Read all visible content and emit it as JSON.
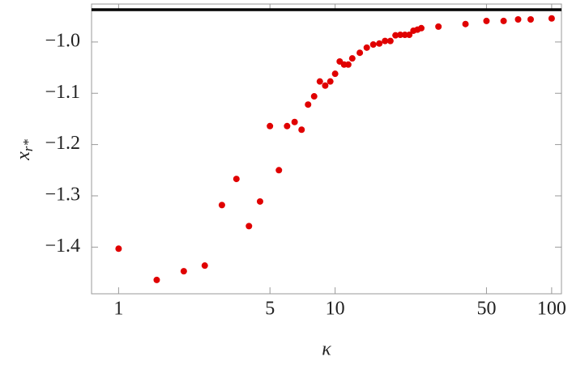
{
  "chart_data": {
    "type": "scatter",
    "x_label": "κ",
    "y_label": {
      "base": "x",
      "sub": "r*"
    },
    "x_scale": "log",
    "xlim": [
      0.75,
      111
    ],
    "ylim": [
      -1.491,
      -0.926
    ],
    "xticks": [
      1,
      5,
      10,
      50,
      100
    ],
    "yticks": [
      {
        "value": -1.4,
        "label": "−1.4"
      },
      {
        "value": -1.3,
        "label": "−1.3"
      },
      {
        "value": -1.2,
        "label": "−1.2"
      },
      {
        "value": -1.1,
        "label": "−1.1"
      },
      {
        "value": -1.0,
        "label": "−1.0"
      }
    ],
    "reference_line": {
      "value": -0.937,
      "color": "#000000"
    },
    "series": [
      {
        "color": "#e00000",
        "x": [
          1,
          1.5,
          2,
          2.5,
          3,
          3.5,
          4,
          4.5,
          5,
          5.5,
          6,
          6.5,
          7,
          7.5,
          8,
          8.5,
          9,
          9.5,
          10,
          10.5,
          11,
          11.5,
          12,
          13,
          14,
          15,
          16,
          17,
          18,
          19,
          20,
          21,
          22,
          23,
          24,
          25,
          30,
          40,
          50,
          60,
          70,
          80,
          100
        ],
        "values": [
          -1.403,
          -1.464,
          -1.447,
          -1.436,
          -1.318,
          -1.267,
          -1.359,
          -1.311,
          -1.164,
          -1.25,
          -1.164,
          -1.156,
          -1.171,
          -1.122,
          -1.106,
          -1.077,
          -1.085,
          -1.077,
          -1.062,
          -1.038,
          -1.044,
          -1.044,
          -1.032,
          -1.021,
          -1.011,
          -1.005,
          -1.003,
          -0.998,
          -0.998,
          -0.987,
          -0.986,
          -0.986,
          -0.986,
          -0.978,
          -0.976,
          -0.973,
          -0.97,
          -0.965,
          -0.959,
          -0.959,
          -0.956,
          -0.956,
          -0.954
        ]
      }
    ]
  }
}
